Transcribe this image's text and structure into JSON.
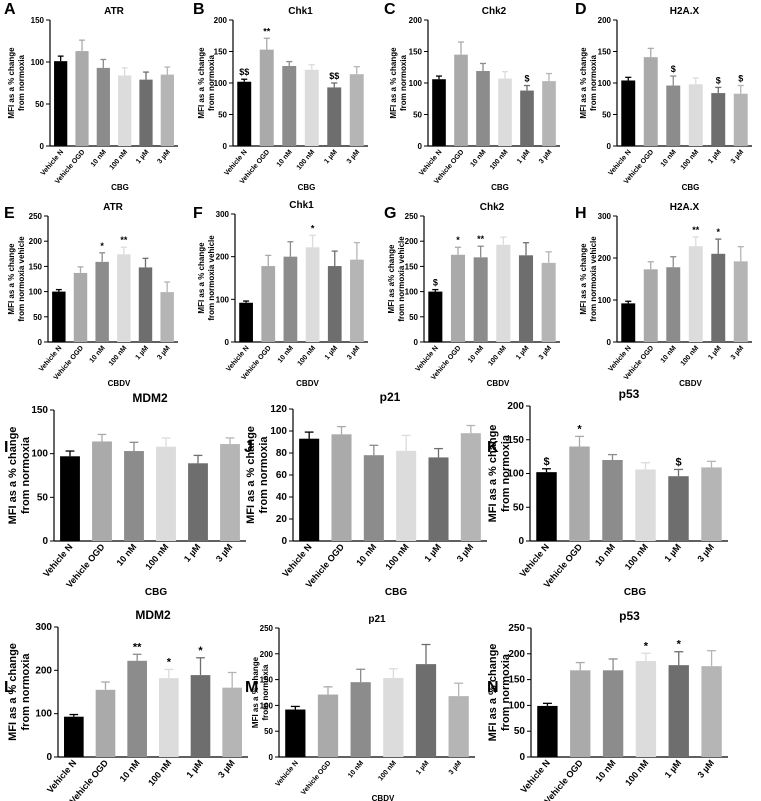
{
  "colors": {
    "vehicle_n": "#000000",
    "vehicle_ogd": "#aaaaaa",
    "10nM": "#8c8c8c",
    "100nM": "#dcdcdc",
    "1uM": "#6e6e6e",
    "3uM": "#b5b5b5",
    "axis": "#000000"
  },
  "chart_data": [
    {
      "panel": "A",
      "title": "ATR",
      "type": "bar",
      "xlabel": "CBG",
      "ylabel": "MFI as a % change from normoxia",
      "categories": [
        "Vehicle N",
        "Vehicle OGD",
        "10 nM",
        "100 nM",
        "1 µM",
        "3 µM"
      ],
      "values": [
        101,
        113,
        93,
        84,
        79,
        85
      ],
      "errors": [
        6,
        13,
        10,
        9,
        9,
        9
      ],
      "annotations": [
        "",
        "",
        "",
        "",
        "",
        ""
      ],
      "ylim": [
        0,
        150
      ],
      "yticks": [
        0,
        50,
        100,
        150
      ]
    },
    {
      "panel": "B",
      "title": "Chk1",
      "type": "bar",
      "xlabel": "CBG",
      "ylabel": "MFI as a % change from normoxia",
      "categories": [
        "Vehicle N",
        "Vehicle OGD",
        "10 nM",
        "100 nM",
        "1 µM",
        "3 µM"
      ],
      "values": [
        102,
        153,
        127,
        121,
        93,
        114
      ],
      "errors": [
        4,
        18,
        7,
        8,
        7,
        12
      ],
      "annotations": [
        "$$",
        "**",
        "",
        "",
        "$$",
        ""
      ],
      "ylim": [
        0,
        200
      ],
      "yticks": [
        0,
        50,
        100,
        150,
        200
      ]
    },
    {
      "panel": "C",
      "title": "Chk2",
      "type": "bar",
      "xlabel": "CBG",
      "ylabel": "MFI as a % change from normoxia",
      "categories": [
        "Vehicle N",
        "Vehicle OGD",
        "10 nM",
        "100 nM",
        "1 µM",
        "3 µM"
      ],
      "values": [
        106,
        145,
        119,
        107,
        88,
        103
      ],
      "errors": [
        5,
        20,
        12,
        11,
        8,
        12
      ],
      "annotations": [
        "",
        "",
        "",
        "",
        "$",
        ""
      ],
      "ylim": [
        0,
        200
      ],
      "yticks": [
        0,
        50,
        100,
        150,
        200
      ]
    },
    {
      "panel": "D",
      "title": "H2A.X",
      "type": "bar",
      "xlabel": "CBG",
      "ylabel": "MFI as a % change from normoxia",
      "categories": [
        "Vehicle N",
        "Vehicle OGD",
        "10 nM",
        "100 nM",
        "1 µM",
        "3 µM"
      ],
      "values": [
        104,
        141,
        96,
        98,
        84,
        83
      ],
      "errors": [
        5,
        14,
        15,
        10,
        9,
        13
      ],
      "annotations": [
        "",
        "",
        "$",
        "",
        "$",
        "$"
      ],
      "ylim": [
        0,
        200
      ],
      "yticks": [
        0,
        50,
        100,
        150,
        200
      ]
    },
    {
      "panel": "E",
      "title": "ATR",
      "type": "bar",
      "xlabel": "CBDV",
      "ylabel": "MFI as a % change from normoxia vehicle",
      "categories": [
        "Vehicle N",
        "Vehicle OGD",
        "10 nM",
        "100 nM",
        "1 µM",
        "3 µM"
      ],
      "values": [
        100,
        137,
        159,
        174,
        148,
        99
      ],
      "errors": [
        4,
        12,
        18,
        14,
        18,
        20
      ],
      "annotations": [
        "",
        "",
        "*",
        "**",
        "",
        ""
      ],
      "ylim": [
        0,
        250
      ],
      "yticks": [
        0,
        50,
        100,
        150,
        200,
        250
      ]
    },
    {
      "panel": "F",
      "title": "Chk1",
      "type": "bar",
      "xlabel": "CBDV",
      "ylabel": "MFI as a % change from normoxia vehicle",
      "categories": [
        "Vehicle N",
        "Vehicle OGD",
        "10 nM",
        "100 nM",
        "1 µM",
        "3 µM"
      ],
      "values": [
        92,
        178,
        200,
        222,
        178,
        193
      ],
      "errors": [
        4,
        25,
        35,
        28,
        35,
        40
      ],
      "annotations": [
        "",
        "",
        "",
        "*",
        "",
        ""
      ],
      "ylim": [
        0,
        300
      ],
      "yticks": [
        0,
        100,
        200,
        300
      ]
    },
    {
      "panel": "G",
      "title": "Chk2",
      "type": "bar",
      "xlabel": "CBDV",
      "ylabel": "MFI as a% change from normoxia vehicle",
      "categories": [
        "Vehicle N",
        "Vehicle OGD",
        "10 nM",
        "100 nM",
        "1 µM",
        "3 µM"
      ],
      "values": [
        100,
        173,
        168,
        193,
        172,
        157
      ],
      "errors": [
        4,
        15,
        22,
        15,
        25,
        22
      ],
      "annotations": [
        "$",
        "*",
        "**",
        "",
        "",
        ""
      ],
      "ylim": [
        0,
        250
      ],
      "yticks": [
        0,
        50,
        100,
        150,
        200,
        250
      ]
    },
    {
      "panel": "H",
      "title": "H2A.X",
      "type": "bar",
      "xlabel": "CBDV",
      "ylabel": "MFI as a % change from normoxia vehicle",
      "categories": [
        "Vehicle N",
        "Vehicle OGD",
        "10 nM",
        "100 nM",
        "1 µM",
        "3 µM"
      ],
      "values": [
        92,
        173,
        178,
        228,
        210,
        192
      ],
      "errors": [
        5,
        18,
        25,
        22,
        35,
        35
      ],
      "annotations": [
        "",
        "",
        "",
        "**",
        "*",
        ""
      ],
      "ylim": [
        0,
        300
      ],
      "yticks": [
        0,
        100,
        200,
        300
      ]
    },
    {
      "panel": "I",
      "title": "MDM2",
      "type": "bar",
      "xlabel": "CBG",
      "ylabel": "MFI as a % change from normoxia",
      "categories": [
        "Vehicle N",
        "Vehicle OGD",
        "10 nM",
        "100 nM",
        "1 µM",
        "3 µM"
      ],
      "values": [
        97,
        114,
        103,
        108,
        89,
        111
      ],
      "errors": [
        6,
        8,
        10,
        10,
        9,
        7
      ],
      "annotations": [
        "",
        "",
        "",
        "",
        "",
        ""
      ],
      "ylim": [
        0,
        150
      ],
      "yticks": [
        0,
        50,
        100,
        150
      ]
    },
    {
      "panel": "J",
      "title": "p21",
      "type": "bar",
      "xlabel": "CBG",
      "ylabel": "MFI as a % change from normoxia",
      "categories": [
        "Vehicle N",
        "Vehicle OGD",
        "10 nM",
        "100 nM",
        "1 µM",
        "3 µM"
      ],
      "values": [
        93,
        97,
        78,
        82,
        76,
        98
      ],
      "errors": [
        6,
        7,
        9,
        14,
        8,
        7
      ],
      "annotations": [
        "",
        "",
        "",
        "",
        "",
        ""
      ],
      "ylim": [
        0,
        120
      ],
      "yticks": [
        0,
        20,
        40,
        60,
        80,
        100,
        120
      ]
    },
    {
      "panel": "K",
      "title": "p53",
      "type": "bar",
      "xlabel": "CBG",
      "ylabel": "MFI as a % change from normoxia",
      "categories": [
        "Vehicle N",
        "Vehicle OGD",
        "10 nM",
        "100 nM",
        "1 µM",
        "3 µM"
      ],
      "values": [
        102,
        140,
        120,
        106,
        96,
        109
      ],
      "errors": [
        5,
        15,
        8,
        10,
        10,
        9
      ],
      "annotations": [
        "$",
        "*",
        "",
        "",
        "$",
        ""
      ],
      "ylim": [
        0,
        200
      ],
      "yticks": [
        0,
        50,
        100,
        150,
        200
      ]
    },
    {
      "panel": "L",
      "title": "MDM2",
      "type": "bar",
      "xlabel": "CBDV",
      "ylabel": "MFI as a % change from normoxia",
      "categories": [
        "Vehicle N",
        "Vehicle OGD",
        "10 nM",
        "100 nM",
        "1 µM",
        "3 µM"
      ],
      "values": [
        93,
        155,
        222,
        182,
        189,
        160
      ],
      "errors": [
        5,
        18,
        15,
        20,
        40,
        35
      ],
      "annotations": [
        "",
        "",
        "**",
        "*",
        "*",
        ""
      ],
      "ylim": [
        0,
        300
      ],
      "yticks": [
        0,
        100,
        200,
        300
      ]
    },
    {
      "panel": "M",
      "title": "p21",
      "type": "bar",
      "xlabel": "CBDV",
      "ylabel": "MFI as a % change from normoxia",
      "categories": [
        "Vehicle N",
        "Vehicle OGD",
        "10 nM",
        "100 nM",
        "1 µM",
        "3 µM"
      ],
      "values": [
        92,
        121,
        145,
        153,
        180,
        118
      ],
      "errors": [
        6,
        15,
        25,
        18,
        38,
        25
      ],
      "annotations": [
        "",
        "",
        "",
        "",
        "",
        ""
      ],
      "ylim": [
        0,
        250
      ],
      "yticks": [
        0,
        50,
        100,
        150,
        200,
        250
      ]
    },
    {
      "panel": "N",
      "title": "p53",
      "type": "bar",
      "xlabel": "CBDV",
      "ylabel": "MFI as a % change from normoxia",
      "categories": [
        "Vehicle N",
        "Vehicle OGD",
        "10 nM",
        "100 nM",
        "1 µM",
        "3 µM"
      ],
      "values": [
        99,
        168,
        168,
        186,
        178,
        176
      ],
      "errors": [
        5,
        15,
        22,
        15,
        26,
        30
      ],
      "annotations": [
        "",
        "",
        "",
        "*",
        "*",
        ""
      ],
      "ylim": [
        0,
        250
      ],
      "yticks": [
        0,
        50,
        100,
        150,
        200,
        250
      ]
    }
  ]
}
